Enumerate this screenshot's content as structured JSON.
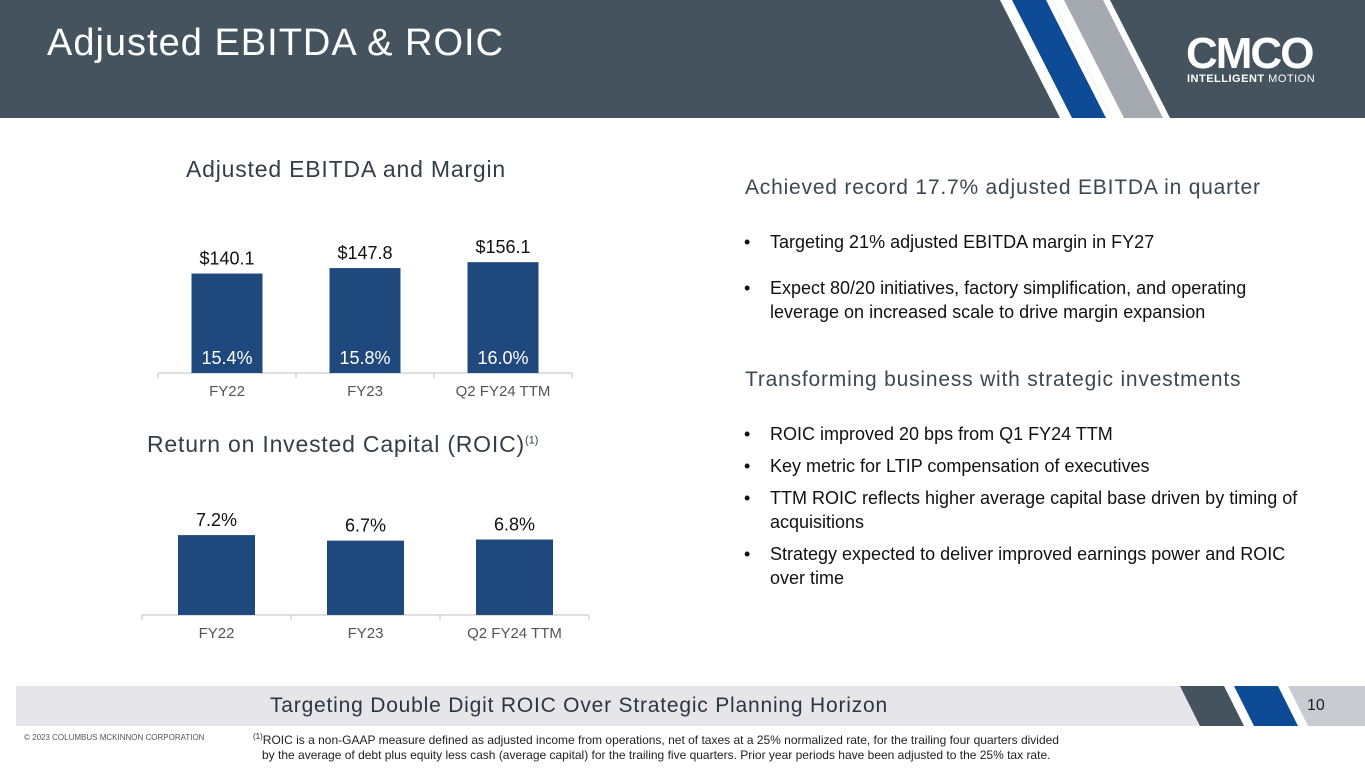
{
  "header": {
    "title": "Adjusted EBITDA & ROIC"
  },
  "logo": {
    "wordmark": "CMCO",
    "tagline_bold": "INTELLIGENT",
    "tagline_light": "MOTION"
  },
  "colors": {
    "header_bg": "#44535d",
    "bar": "#1f497d",
    "stripe_blue": "#0d4b96",
    "stripe_gray": "#a4aab0"
  },
  "ebitda_chart": {
    "title": "Adjusted EBITDA and Margin",
    "margins": [
      "15.4%",
      "15.8%",
      "16.0%"
    ],
    "value_labels": [
      "$140.1",
      "$147.8",
      "$156.1"
    ]
  },
  "roic_chart": {
    "title": "Return on Invested Capital (ROIC)",
    "title_sup": "(1)",
    "value_labels": [
      "7.2%",
      "6.7%",
      "6.8%"
    ]
  },
  "chart_data": [
    {
      "type": "bar",
      "title": "Adjusted EBITDA and Margin",
      "categories": [
        "FY22",
        "FY23",
        "Q2 FY24 TTM"
      ],
      "series": [
        {
          "values": [
            140.1,
            147.8,
            156.1
          ]
        },
        {
          "values": [
            15.4,
            15.8,
            16.0
          ]
        }
      ],
      "ylim": [
        0,
        200
      ],
      "grid": false,
      "legend": "none"
    },
    {
      "type": "bar",
      "title": "Return on Invested Capital (ROIC)",
      "categories": [
        "FY22",
        "FY23",
        "Q2 FY24 TTM"
      ],
      "series": [
        {
          "values": [
            7.2,
            6.7,
            6.8
          ]
        }
      ],
      "ylim": [
        0,
        10
      ],
      "grid": false,
      "legend": "none"
    }
  ],
  "section1": {
    "heading": "Achieved record 17.7% adjusted EBITDA in quarter",
    "bullets": [
      "Targeting 21% adjusted EBITDA margin in FY27",
      "Expect 80/20 initiatives, factory simplification, and operating leverage on increased scale to drive margin expansion"
    ]
  },
  "section2": {
    "heading": "Transforming business with strategic investments",
    "bullets": [
      "ROIC improved 20 bps from Q1 FY24 TTM",
      "Key metric for LTIP compensation of executives",
      "TTM ROIC reflects higher average capital base driven by timing of acquisitions",
      "Strategy expected to deliver improved earnings power and ROIC over time"
    ]
  },
  "footer": {
    "band_text": "Targeting Double Digit ROIC Over Strategic Planning Horizon",
    "page_number": "10",
    "copyright": "© 2023 COLUMBUS MCKINNON CORPORATION",
    "footnote_sup": "(1)",
    "footnote_line1": "ROIC is a non-GAAP measure defined as adjusted income from operations, net of taxes at a 25% normalized rate, for the trailing four quarters divided",
    "footnote_line2": "by the average of debt plus equity less cash (average capital) for the trailing five quarters. Prior year periods have been adjusted to the 25% tax rate."
  }
}
